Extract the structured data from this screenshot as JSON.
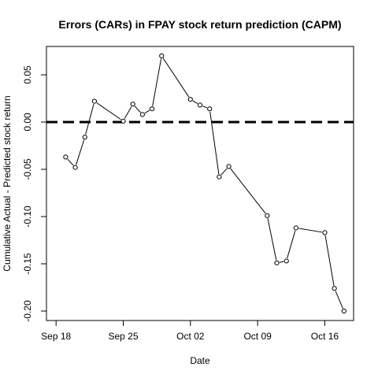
{
  "chart_data": {
    "type": "line",
    "title": "Errors (CARs) in FPAY stock return prediction (CAPM)",
    "xlabel": "Date",
    "ylabel": "Cumulative Actual - Predicted stock return",
    "x_ticks": [
      {
        "date": "2023-09-18",
        "label": "Sep 18"
      },
      {
        "date": "2023-09-25",
        "label": "Sep 25"
      },
      {
        "date": "2023-10-02",
        "label": "Oct 02"
      },
      {
        "date": "2023-10-09",
        "label": "Oct 09"
      },
      {
        "date": "2023-10-16",
        "label": "Oct 16"
      }
    ],
    "y_ticks": [
      {
        "value": 0.05,
        "label": "0.05"
      },
      {
        "value": 0.0,
        "label": "0.00"
      },
      {
        "value": -0.05,
        "label": "-0.05"
      },
      {
        "value": -0.1,
        "label": "-0.10"
      },
      {
        "value": -0.15,
        "label": "-0.15"
      },
      {
        "value": -0.2,
        "label": "-0.20"
      }
    ],
    "xlim": [
      "2023-09-17",
      "2023-10-19"
    ],
    "ylim": [
      -0.21,
      0.08
    ],
    "reference_line": {
      "y": 0.0,
      "style": "dashed"
    },
    "grid": false,
    "series": [
      {
        "points": [
          {
            "x": "2023-09-19",
            "y": -0.037
          },
          {
            "x": "2023-09-20",
            "y": -0.048
          },
          {
            "x": "2023-09-21",
            "y": -0.016
          },
          {
            "x": "2023-09-22",
            "y": 0.022
          },
          {
            "x": "2023-09-25",
            "y": 0.001
          },
          {
            "x": "2023-09-26",
            "y": 0.019
          },
          {
            "x": "2023-09-27",
            "y": 0.008
          },
          {
            "x": "2023-09-28",
            "y": 0.014
          },
          {
            "x": "2023-09-29",
            "y": 0.07
          },
          {
            "x": "2023-10-02",
            "y": 0.024
          },
          {
            "x": "2023-10-03",
            "y": 0.018
          },
          {
            "x": "2023-10-04",
            "y": 0.014
          },
          {
            "x": "2023-10-05",
            "y": -0.058
          },
          {
            "x": "2023-10-06",
            "y": -0.047
          },
          {
            "x": "2023-10-10",
            "y": -0.099
          },
          {
            "x": "2023-10-11",
            "y": -0.149
          },
          {
            "x": "2023-10-12",
            "y": -0.147
          },
          {
            "x": "2023-10-13",
            "y": -0.112
          },
          {
            "x": "2023-10-16",
            "y": -0.117
          },
          {
            "x": "2023-10-17",
            "y": -0.176
          },
          {
            "x": "2023-10-18",
            "y": -0.2
          }
        ]
      }
    ]
  }
}
